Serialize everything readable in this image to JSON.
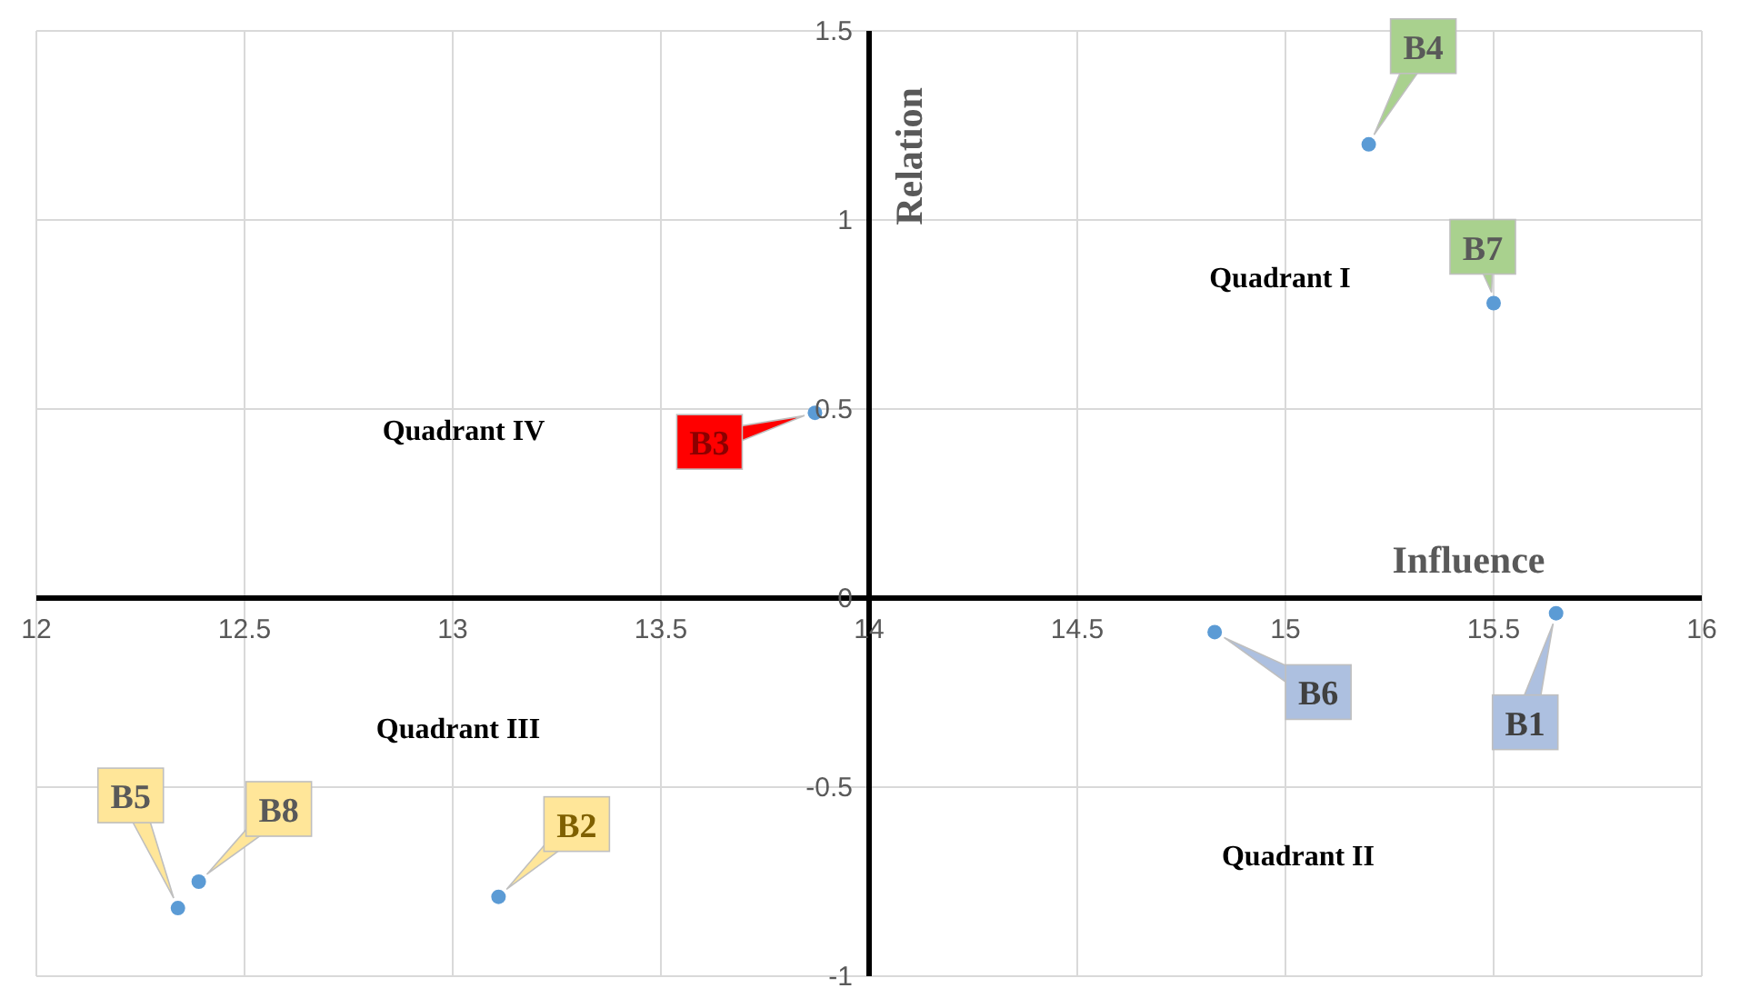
{
  "chart_data": {
    "type": "scatter",
    "xlabel": "Influence",
    "ylabel": "Relation",
    "x": [
      15.65,
      13.11,
      13.87,
      15.2,
      12.34,
      14.83,
      15.5,
      12.39
    ],
    "values": [
      -0.04,
      -0.79,
      0.49,
      1.2,
      -0.82,
      -0.09,
      0.78,
      -0.75
    ],
    "color": "#5b9bd5",
    "marker": "circle",
    "xlim": [
      12,
      16
    ],
    "xticks": [
      12,
      12.5,
      13,
      13.5,
      14,
      14.5,
      15,
      15.5,
      16
    ],
    "ylim": [
      -1,
      1.5
    ],
    "yticks": [
      -1,
      -0.5,
      0,
      0.5,
      1,
      1.5
    ],
    "grid": true,
    "legend": false,
    "annotations": [
      "Quadrant I",
      "Quadrant II",
      "Quadrant III",
      "Quadrant IV",
      {
        "text": "B1",
        "x": 15.65,
        "y": -0.04
      },
      {
        "text": "B2",
        "x": 13.11,
        "y": -0.79
      },
      {
        "text": "B3",
        "x": 13.87,
        "y": 0.49
      },
      {
        "text": "B4",
        "x": 15.2,
        "y": 1.2
      },
      {
        "text": "B5",
        "x": 12.34,
        "y": -0.82
      },
      {
        "text": "B6",
        "x": 14.83,
        "y": -0.09
      },
      {
        "text": "B7",
        "x": 15.5,
        "y": 0.78
      },
      {
        "text": "B8",
        "x": 12.39,
        "y": -0.75
      }
    ]
  }
}
